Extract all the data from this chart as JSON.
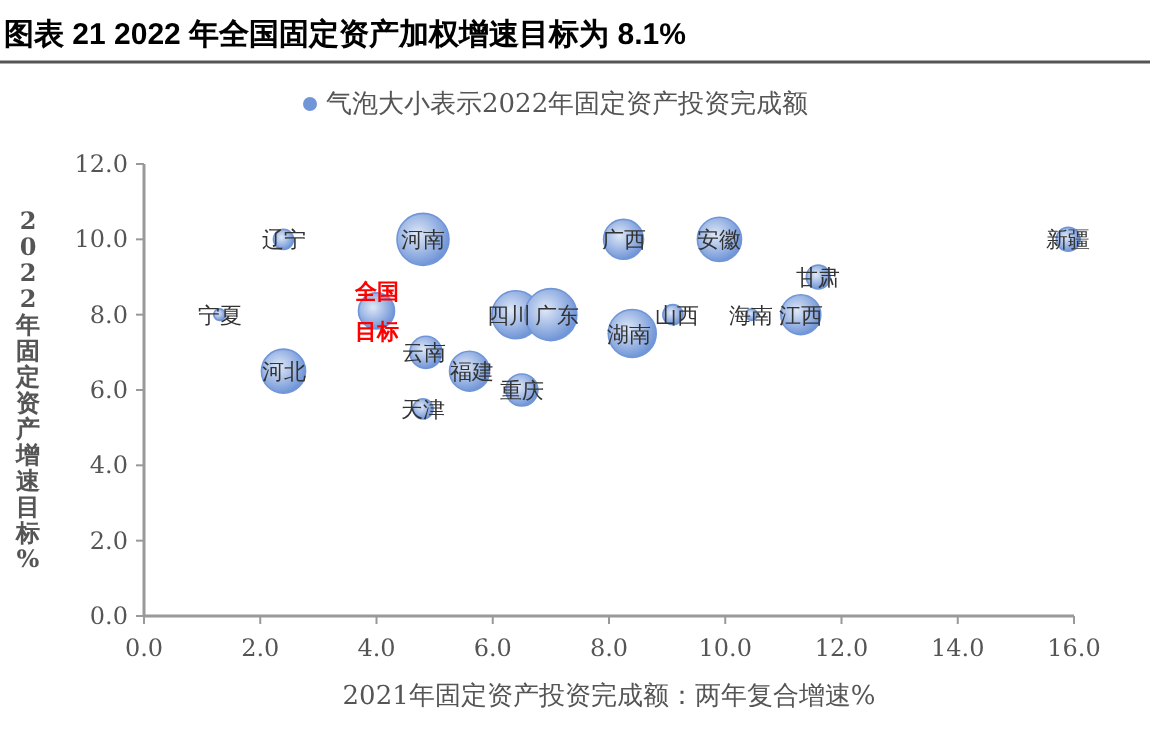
{
  "chart_data": {
    "type": "bubble",
    "title": "图表 21 2022 年全国固定资产加权增速目标为 8.1%",
    "xlabel": "2021年固定资产投资完成额：两年复合增速%",
    "ylabel": "2022年固定资产增速目标%",
    "xlim": [
      0,
      16
    ],
    "ylim": [
      0,
      12
    ],
    "xticks": [
      {
        "value": 0,
        "label": "0.0"
      },
      {
        "value": 2,
        "label": "2.0"
      },
      {
        "value": 4,
        "label": "4.0"
      },
      {
        "value": 6,
        "label": "6.0"
      },
      {
        "value": 8,
        "label": "8.0"
      },
      {
        "value": 10,
        "label": "10.0"
      },
      {
        "value": 12,
        "label": "12.0"
      },
      {
        "value": 14,
        "label": "14.0"
      },
      {
        "value": 16,
        "label": "16.0"
      }
    ],
    "yticks": [
      {
        "value": 0,
        "label": "0.0"
      },
      {
        "value": 2,
        "label": "2.0"
      },
      {
        "value": 4,
        "label": "4.0"
      },
      {
        "value": 6,
        "label": "6.0"
      },
      {
        "value": 8,
        "label": "8.0"
      },
      {
        "value": 10,
        "label": "10.0"
      },
      {
        "value": 12,
        "label": "12.0"
      }
    ],
    "grid": false,
    "legend": "top",
    "annotations": [
      {
        "text": "全国目标",
        "x": 4.0,
        "y": 8.1
      }
    ],
    "series": [
      {
        "name": "气泡大小表示2022年固定资产投资完成额",
        "color": "#7196d8",
        "x": [
          2.4,
          4.8,
          1.3,
          6.4,
          7.0,
          2.4,
          4.85,
          5.6,
          6.5,
          4.8,
          8.25,
          9.9,
          11.6,
          9.1,
          10.45,
          11.3,
          8.4,
          15.9
        ],
        "values": [
          10.0,
          10.0,
          8.0,
          8.0,
          8.0,
          6.5,
          7.0,
          6.5,
          6.0,
          5.5,
          10.0,
          10.0,
          9.0,
          8.0,
          8.0,
          8.0,
          7.5,
          10.0
        ],
        "sizes": [
          0.15,
          1,
          0.05,
          0.85,
          1,
          0.72,
          0.38,
          0.59,
          0.38,
          0.15,
          0.59,
          0.72,
          0.21,
          0.15,
          0.05,
          0.59,
          0.85,
          0.21
        ],
        "value_labels": [
          "辽宁",
          "河南",
          "宁夏",
          "四川",
          "广东",
          "河北",
          "云南",
          "福建",
          "重庆",
          "天津",
          "广西",
          "安徽",
          "甘肃",
          "山西",
          "海南",
          "江西",
          "湖南",
          "新疆"
        ]
      },
      {
        "color": "#7196d8",
        "x": [
          4.0
        ],
        "values": [
          8.1
        ],
        "sizes": [
          0.48
        ]
      }
    ]
  }
}
